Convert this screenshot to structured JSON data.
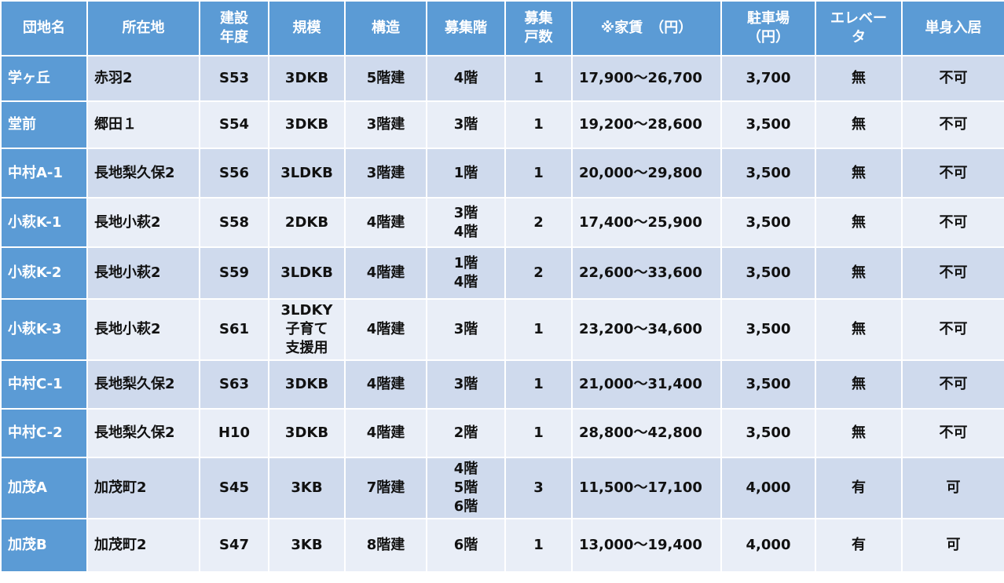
{
  "headers": {
    "name": "団地名",
    "location": "所在地",
    "built_line1": "建設",
    "built_line2": "年度",
    "size": "規模",
    "structure": "構造",
    "floors": "募集階",
    "units_line1": "募集",
    "units_line2": "戸数",
    "rent": "※家賃　（円）",
    "parking_line1": "駐車場",
    "parking_line2": "（円）",
    "elevator_line1": "エレベー",
    "elevator_line2": "タ",
    "single": "単身入居"
  },
  "rows": [
    {
      "name": "学ヶ丘",
      "location": "赤羽2",
      "built": "S53",
      "size": [
        "3DKB"
      ],
      "structure": "5階建",
      "floors": [
        "4階"
      ],
      "units": "1",
      "rent": "17,900～26,700",
      "parking": "3,700",
      "elevator": "無",
      "single": "不可"
    },
    {
      "name": "堂前",
      "location": "郷田１",
      "built": "S54",
      "size": [
        "3DKB"
      ],
      "structure": "3階建",
      "floors": [
        "3階"
      ],
      "units": "1",
      "rent": "19,200～28,600",
      "parking": "3,500",
      "elevator": "無",
      "single": "不可"
    },
    {
      "name": "中村A-1",
      "location": "長地梨久保2",
      "built": "S56",
      "size": [
        "3LDKB"
      ],
      "structure": "3階建",
      "floors": [
        "1階"
      ],
      "units": "1",
      "rent": "20,000～29,800",
      "parking": "3,500",
      "elevator": "無",
      "single": "不可"
    },
    {
      "name": "小萩K-1",
      "location": "長地小萩2",
      "built": "S58",
      "size": [
        "2DKB"
      ],
      "structure": "4階建",
      "floors": [
        "3階",
        "4階"
      ],
      "units": "2",
      "rent": "17,400～25,900",
      "parking": "3,500",
      "elevator": "無",
      "single": "不可"
    },
    {
      "name": "小萩K-2",
      "location": "長地小萩2",
      "built": "S59",
      "size": [
        "3LDKB"
      ],
      "structure": "4階建",
      "floors": [
        "1階",
        "4階"
      ],
      "units": "2",
      "rent": "22,600～33,600",
      "parking": "3,500",
      "elevator": "無",
      "single": "不可"
    },
    {
      "name": "小萩K-3",
      "location": "長地小萩2",
      "built": "S61",
      "size": [
        "3LDKY",
        "子育て",
        "支援用"
      ],
      "structure": "4階建",
      "floors": [
        "3階"
      ],
      "units": "1",
      "rent": "23,200～34,600",
      "parking": "3,500",
      "elevator": "無",
      "single": "不可"
    },
    {
      "name": "中村C-1",
      "location": "長地梨久保2",
      "built": "S63",
      "size": [
        "3DKB"
      ],
      "structure": "4階建",
      "floors": [
        "3階"
      ],
      "units": "1",
      "rent": "21,000～31,400",
      "parking": "3,500",
      "elevator": "無",
      "single": "不可"
    },
    {
      "name": "中村C-2",
      "location": "長地梨久保2",
      "built": "H10",
      "size": [
        "3DKB"
      ],
      "structure": "4階建",
      "floors": [
        "2階"
      ],
      "units": "1",
      "rent": "28,800～42,800",
      "parking": "3,500",
      "elevator": "無",
      "single": "不可"
    },
    {
      "name": "加茂A",
      "location": "加茂町2",
      "built": "S45",
      "size": [
        "3KB"
      ],
      "structure": "7階建",
      "floors": [
        "4階",
        "5階",
        "6階"
      ],
      "units": "3",
      "rent": "11,500～17,100",
      "parking": "4,000",
      "elevator": "有",
      "single": "可"
    },
    {
      "name": "加茂B",
      "location": "加茂町2",
      "built": "S47",
      "size": [
        "3KB"
      ],
      "structure": "8階建",
      "floors": [
        "6階"
      ],
      "units": "1",
      "rent": "13,000～19,400",
      "parking": "4,000",
      "elevator": "有",
      "single": "可"
    }
  ]
}
